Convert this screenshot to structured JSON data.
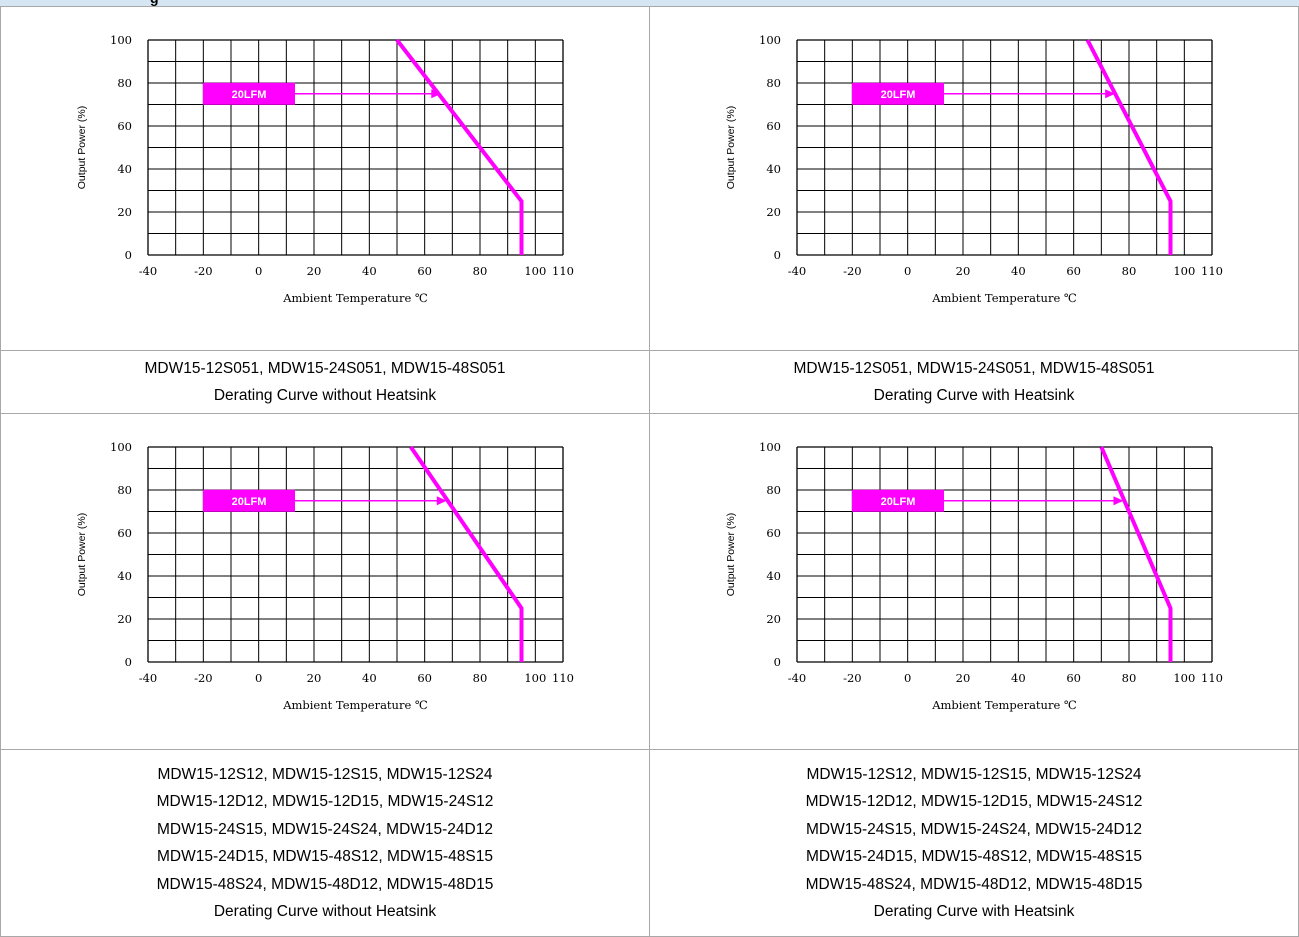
{
  "section_title": "g",
  "chart_data": [
    {
      "type": "line",
      "xlabel": "Ambient Temperature ℃",
      "ylabel": "Output Power (%)",
      "xticks": [
        -40,
        -20,
        0,
        20,
        40,
        60,
        80,
        100,
        110
      ],
      "yticks": [
        0,
        20,
        40,
        60,
        80,
        100
      ],
      "xlim": [
        -40,
        110
      ],
      "ylim": [
        0,
        100
      ],
      "grid": true,
      "series": [
        {
          "x": [
            50,
            95,
            95
          ],
          "y": [
            100,
            25,
            0
          ],
          "color": "#ff00ff"
        }
      ],
      "annotation": {
        "text": "20LFM",
        "arrow_to": [
          66,
          75
        ],
        "color": "#ff00ff"
      },
      "caption": [
        "MDW15-12S051, MDW15-24S051, MDW15-48S051",
        "Derating Curve without Heatsink"
      ]
    },
    {
      "type": "line",
      "xlabel": "Ambient Temperature ℃",
      "ylabel": "Output Power (%)",
      "xticks": [
        -40,
        -20,
        0,
        20,
        40,
        60,
        80,
        100,
        110
      ],
      "yticks": [
        0,
        20,
        40,
        60,
        80,
        100
      ],
      "xlim": [
        -40,
        110
      ],
      "ylim": [
        0,
        100
      ],
      "grid": true,
      "series": [
        {
          "x": [
            65,
            95,
            95
          ],
          "y": [
            100,
            25,
            0
          ],
          "color": "#ff00ff"
        }
      ],
      "annotation": {
        "text": "20LFM",
        "arrow_to": [
          75,
          75
        ],
        "color": "#ff00ff"
      },
      "caption": [
        "MDW15-12S051, MDW15-24S051, MDW15-48S051",
        "Derating Curve with Heatsink"
      ]
    },
    {
      "type": "line",
      "xlabel": "Ambient Temperature ℃",
      "ylabel": "Output Power (%)",
      "xticks": [
        -40,
        -20,
        0,
        20,
        40,
        60,
        80,
        100,
        110
      ],
      "yticks": [
        0,
        20,
        40,
        60,
        80,
        100
      ],
      "xlim": [
        -40,
        110
      ],
      "ylim": [
        0,
        100
      ],
      "grid": true,
      "series": [
        {
          "x": [
            55,
            95,
            95
          ],
          "y": [
            100,
            25,
            0
          ],
          "color": "#ff00ff"
        }
      ],
      "annotation": {
        "text": "20LFM",
        "arrow_to": [
          68,
          75
        ],
        "color": "#ff00ff"
      },
      "caption": [
        "MDW15-12S12, MDW15-12S15, MDW15-12S24",
        "MDW15-12D12, MDW15-12D15, MDW15-24S12",
        "MDW15-24S15, MDW15-24S24, MDW15-24D12",
        "MDW15-24D15, MDW15-48S12, MDW15-48S15",
        "MDW15-48S24, MDW15-48D12, MDW15-48D15",
        "Derating Curve without Heatsink"
      ]
    },
    {
      "type": "line",
      "xlabel": "Ambient Temperature ℃",
      "ylabel": "Output Power (%)",
      "xticks": [
        -40,
        -20,
        0,
        20,
        40,
        60,
        80,
        100,
        110
      ],
      "yticks": [
        0,
        20,
        40,
        60,
        80,
        100
      ],
      "xlim": [
        -40,
        110
      ],
      "ylim": [
        0,
        100
      ],
      "grid": true,
      "series": [
        {
          "x": [
            70,
            95,
            95
          ],
          "y": [
            100,
            25,
            0
          ],
          "color": "#ff00ff"
        }
      ],
      "annotation": {
        "text": "20LFM",
        "arrow_to": [
          78,
          75
        ],
        "color": "#ff00ff"
      },
      "caption": [
        "MDW15-12S12, MDW15-12S15, MDW15-12S24",
        "MDW15-12D12, MDW15-12D15, MDW15-24S12",
        "MDW15-24S15, MDW15-24S24, MDW15-24D12",
        "MDW15-24D15, MDW15-48S12, MDW15-48S15",
        "MDW15-48S24, MDW15-48D12, MDW15-48D15",
        "Derating Curve with Heatsink"
      ]
    }
  ]
}
